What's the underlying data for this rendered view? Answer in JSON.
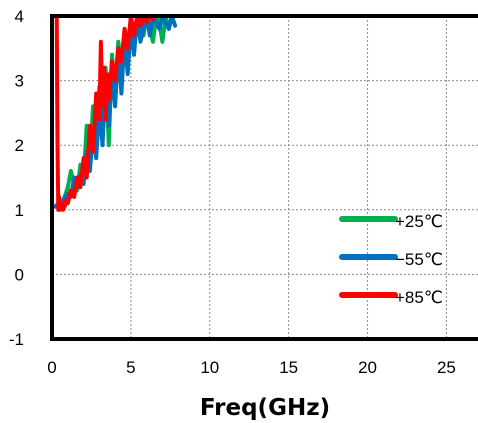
{
  "chart_data": {
    "type": "line",
    "title": "",
    "xlabel": "Freq(GHz)",
    "ylabel": "",
    "xlim": [
      0,
      27
    ],
    "ylim": [
      -1,
      4
    ],
    "x_ticks": [
      0,
      5,
      10,
      15,
      20,
      25
    ],
    "y_ticks": [
      -1,
      0,
      1,
      2,
      3,
      4
    ],
    "x_tick_labels": [
      "0",
      "5",
      "10",
      "15",
      "20",
      "25"
    ],
    "y_tick_labels": [
      "-1",
      "0",
      "1",
      "2",
      "3",
      "4"
    ],
    "grid": true,
    "legend_position": "right",
    "series": [
      {
        "name": "+25℃",
        "color": "#00b050",
        "x": [
          0.2,
          0.4,
          0.6,
          0.8,
          1.0,
          1.2,
          1.4,
          1.6,
          1.8,
          2.0,
          2.2,
          2.4,
          2.6,
          2.8,
          3.0,
          3.2,
          3.4,
          3.6,
          3.8,
          4.0,
          4.2,
          4.4,
          4.6,
          4.8,
          5.0,
          5.2,
          5.4,
          5.6,
          5.8,
          6.0,
          6.2,
          6.4,
          6.6,
          6.8,
          7.0,
          7.2,
          7.4,
          7.6
        ],
        "y": [
          1.05,
          1.1,
          1.08,
          1.2,
          1.35,
          1.6,
          1.4,
          1.3,
          1.7,
          1.5,
          2.3,
          1.7,
          2.6,
          1.9,
          2.9,
          2.1,
          3.2,
          2.0,
          3.4,
          2.8,
          3.6,
          3.1,
          3.8,
          3.3,
          4.0,
          3.6,
          3.9,
          4.0,
          3.7,
          4.0,
          3.8,
          3.6,
          4.0,
          3.9,
          3.6,
          4.0,
          3.8,
          4.0
        ]
      },
      {
        "name": "−55℃",
        "color": "#0070c0",
        "x": [
          0.2,
          0.4,
          0.6,
          0.8,
          1.0,
          1.2,
          1.4,
          1.6,
          1.8,
          2.0,
          2.2,
          2.4,
          2.6,
          2.8,
          3.0,
          3.2,
          3.4,
          3.6,
          3.8,
          4.0,
          4.2,
          4.4,
          4.6,
          4.8,
          5.0,
          5.2,
          5.4,
          5.6,
          5.8,
          6.0,
          6.2,
          6.4,
          6.6,
          6.8,
          7.0,
          7.2,
          7.4,
          7.6,
          7.8
        ],
        "y": [
          1.05,
          1.08,
          1.12,
          1.18,
          1.25,
          1.2,
          1.5,
          1.35,
          1.55,
          1.4,
          1.9,
          1.6,
          2.2,
          1.8,
          2.6,
          2.0,
          3.0,
          2.3,
          3.2,
          2.6,
          3.5,
          2.8,
          3.7,
          3.1,
          3.9,
          3.4,
          4.0,
          3.6,
          3.8,
          4.0,
          3.7,
          4.0,
          3.9,
          3.8,
          4.0,
          3.9,
          3.8,
          4.0,
          3.85
        ]
      },
      {
        "name": "+85℃",
        "color": "#ff0000",
        "x": [
          0.3,
          0.35,
          0.4,
          0.45,
          0.5,
          0.6,
          0.7,
          0.8,
          0.9,
          1.0,
          1.2,
          1.4,
          1.6,
          1.8,
          2.0,
          2.2,
          2.4,
          2.6,
          2.8,
          3.0,
          3.1,
          3.2,
          3.3,
          3.4,
          3.5,
          3.6,
          3.8,
          4.0,
          4.2,
          4.4,
          4.6,
          4.8,
          5.0,
          5.2,
          5.4,
          5.6,
          5.8,
          6.0,
          6.2,
          6.4
        ],
        "y": [
          4.0,
          2.0,
          1.0,
          1.2,
          1.0,
          1.1,
          1.0,
          1.05,
          1.15,
          1.1,
          1.3,
          1.2,
          1.5,
          1.35,
          1.8,
          1.5,
          2.3,
          1.9,
          2.8,
          2.4,
          3.6,
          2.6,
          3.2,
          2.4,
          3.1,
          2.7,
          3.3,
          3.0,
          3.5,
          3.3,
          3.8,
          3.5,
          4.0,
          3.7,
          4.0,
          3.85,
          4.0,
          3.9,
          4.0,
          3.95
        ]
      }
    ]
  }
}
